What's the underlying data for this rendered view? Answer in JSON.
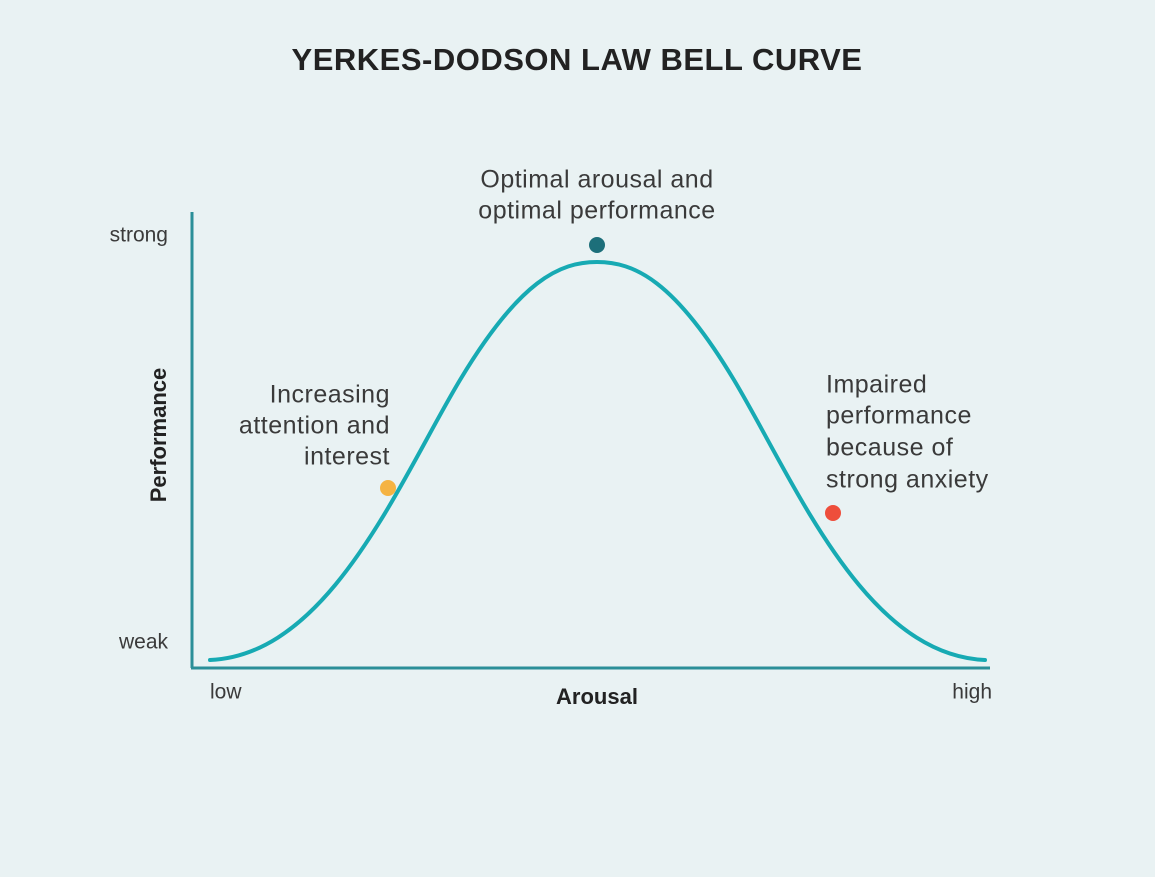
{
  "title": "YERKES-DODSON LAW BELL CURVE",
  "y_axis": {
    "label": "Performance",
    "top": "strong",
    "bottom": "weak"
  },
  "x_axis": {
    "label": "Arousal",
    "left": "low",
    "right": "high"
  },
  "annotations": [
    {
      "lines": [
        "Optimal arousal and",
        "optimal performance"
      ]
    },
    {
      "lines": [
        "Increasing",
        "attention and",
        "interest"
      ]
    },
    {
      "lines": [
        "Impaired",
        "performance",
        "because of",
        "strong anxiety"
      ]
    }
  ]
}
